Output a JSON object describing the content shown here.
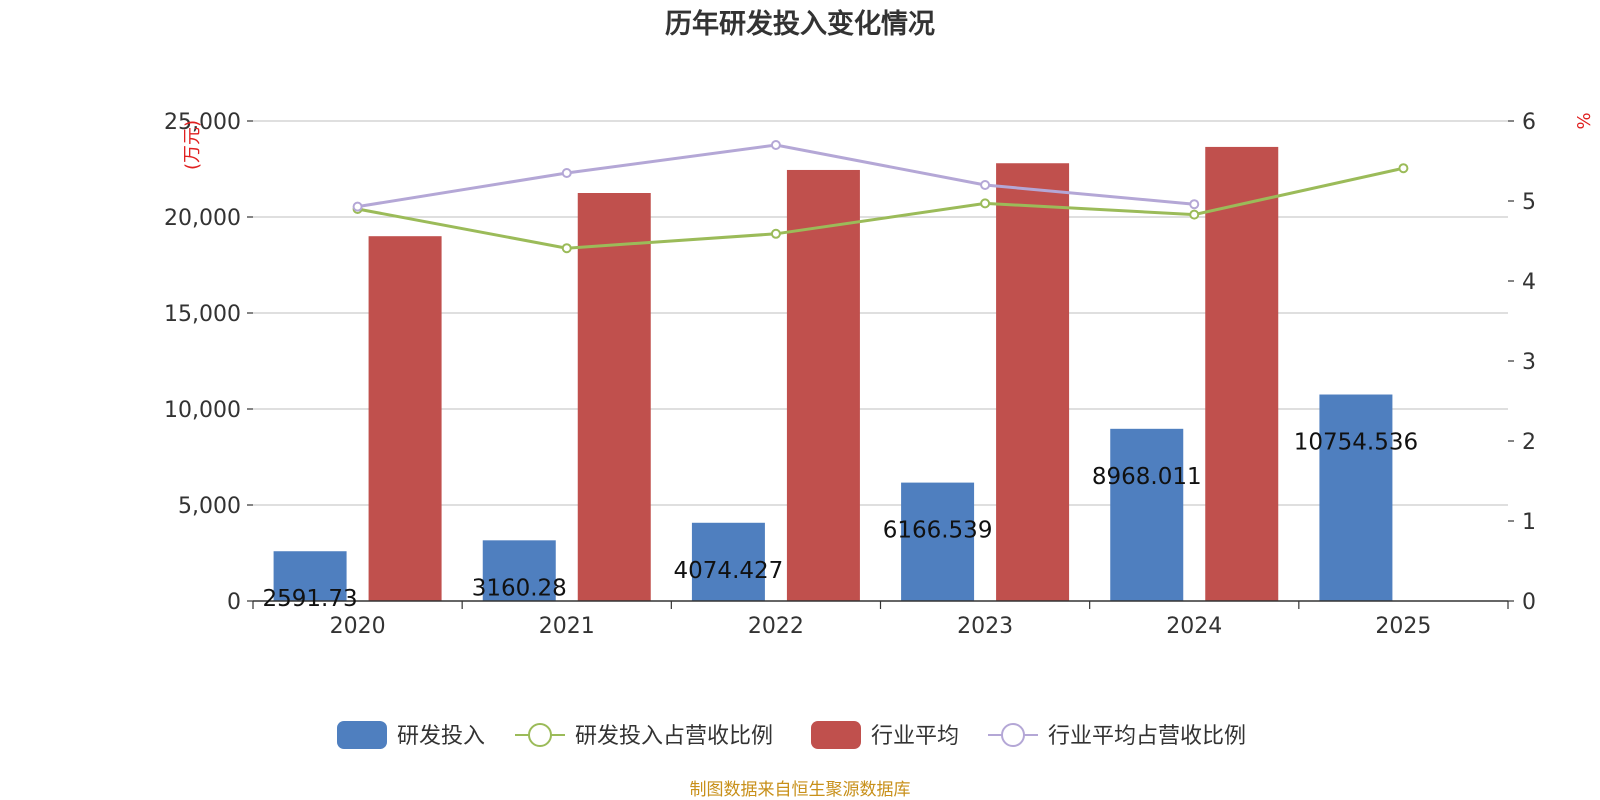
{
  "chart_data": {
    "type": "bar",
    "title": "历年研发投入变化情况",
    "categories": [
      "2020",
      "2021",
      "2022",
      "2023",
      "2024",
      "2025"
    ],
    "left_axis": {
      "unit": "(万元)",
      "ylim": [
        0,
        25000
      ],
      "ticks": [
        "0",
        "5,000",
        "10,000",
        "15,000",
        "20,000",
        "25,000"
      ]
    },
    "right_axis": {
      "unit": "%",
      "ylim": [
        0,
        6
      ],
      "ticks": [
        "0",
        "1",
        "2",
        "3",
        "4",
        "5",
        "6"
      ]
    },
    "series": [
      {
        "name": "研发投入",
        "type": "bar",
        "axis": "left",
        "color": "#4f7fbf",
        "values": [
          2591.73,
          3160.28,
          4074.427,
          6166.539,
          8968.011,
          10754.536
        ],
        "labels": [
          "2591.73",
          "3160.28",
          "4074.427",
          "6166.539",
          "8968.011",
          "10754.536"
        ]
      },
      {
        "name": "研发投入占营收比例",
        "type": "line",
        "axis": "right",
        "color": "#9bbb59",
        "values": [
          4.9,
          4.41,
          4.59,
          4.97,
          4.83,
          5.41
        ]
      },
      {
        "name": "行业平均",
        "type": "bar",
        "axis": "left",
        "color": "#c0504d",
        "values": [
          19000,
          21250,
          22450,
          22800,
          23650,
          null
        ]
      },
      {
        "name": "行业平均占营收比例",
        "type": "line",
        "axis": "right",
        "color": "#b4a7d6",
        "values": [
          4.93,
          5.35,
          5.7,
          5.2,
          4.96,
          null
        ]
      }
    ],
    "grid": true,
    "legend_position": "bottom"
  },
  "source_note": "制图数据来自恒生聚源数据库"
}
